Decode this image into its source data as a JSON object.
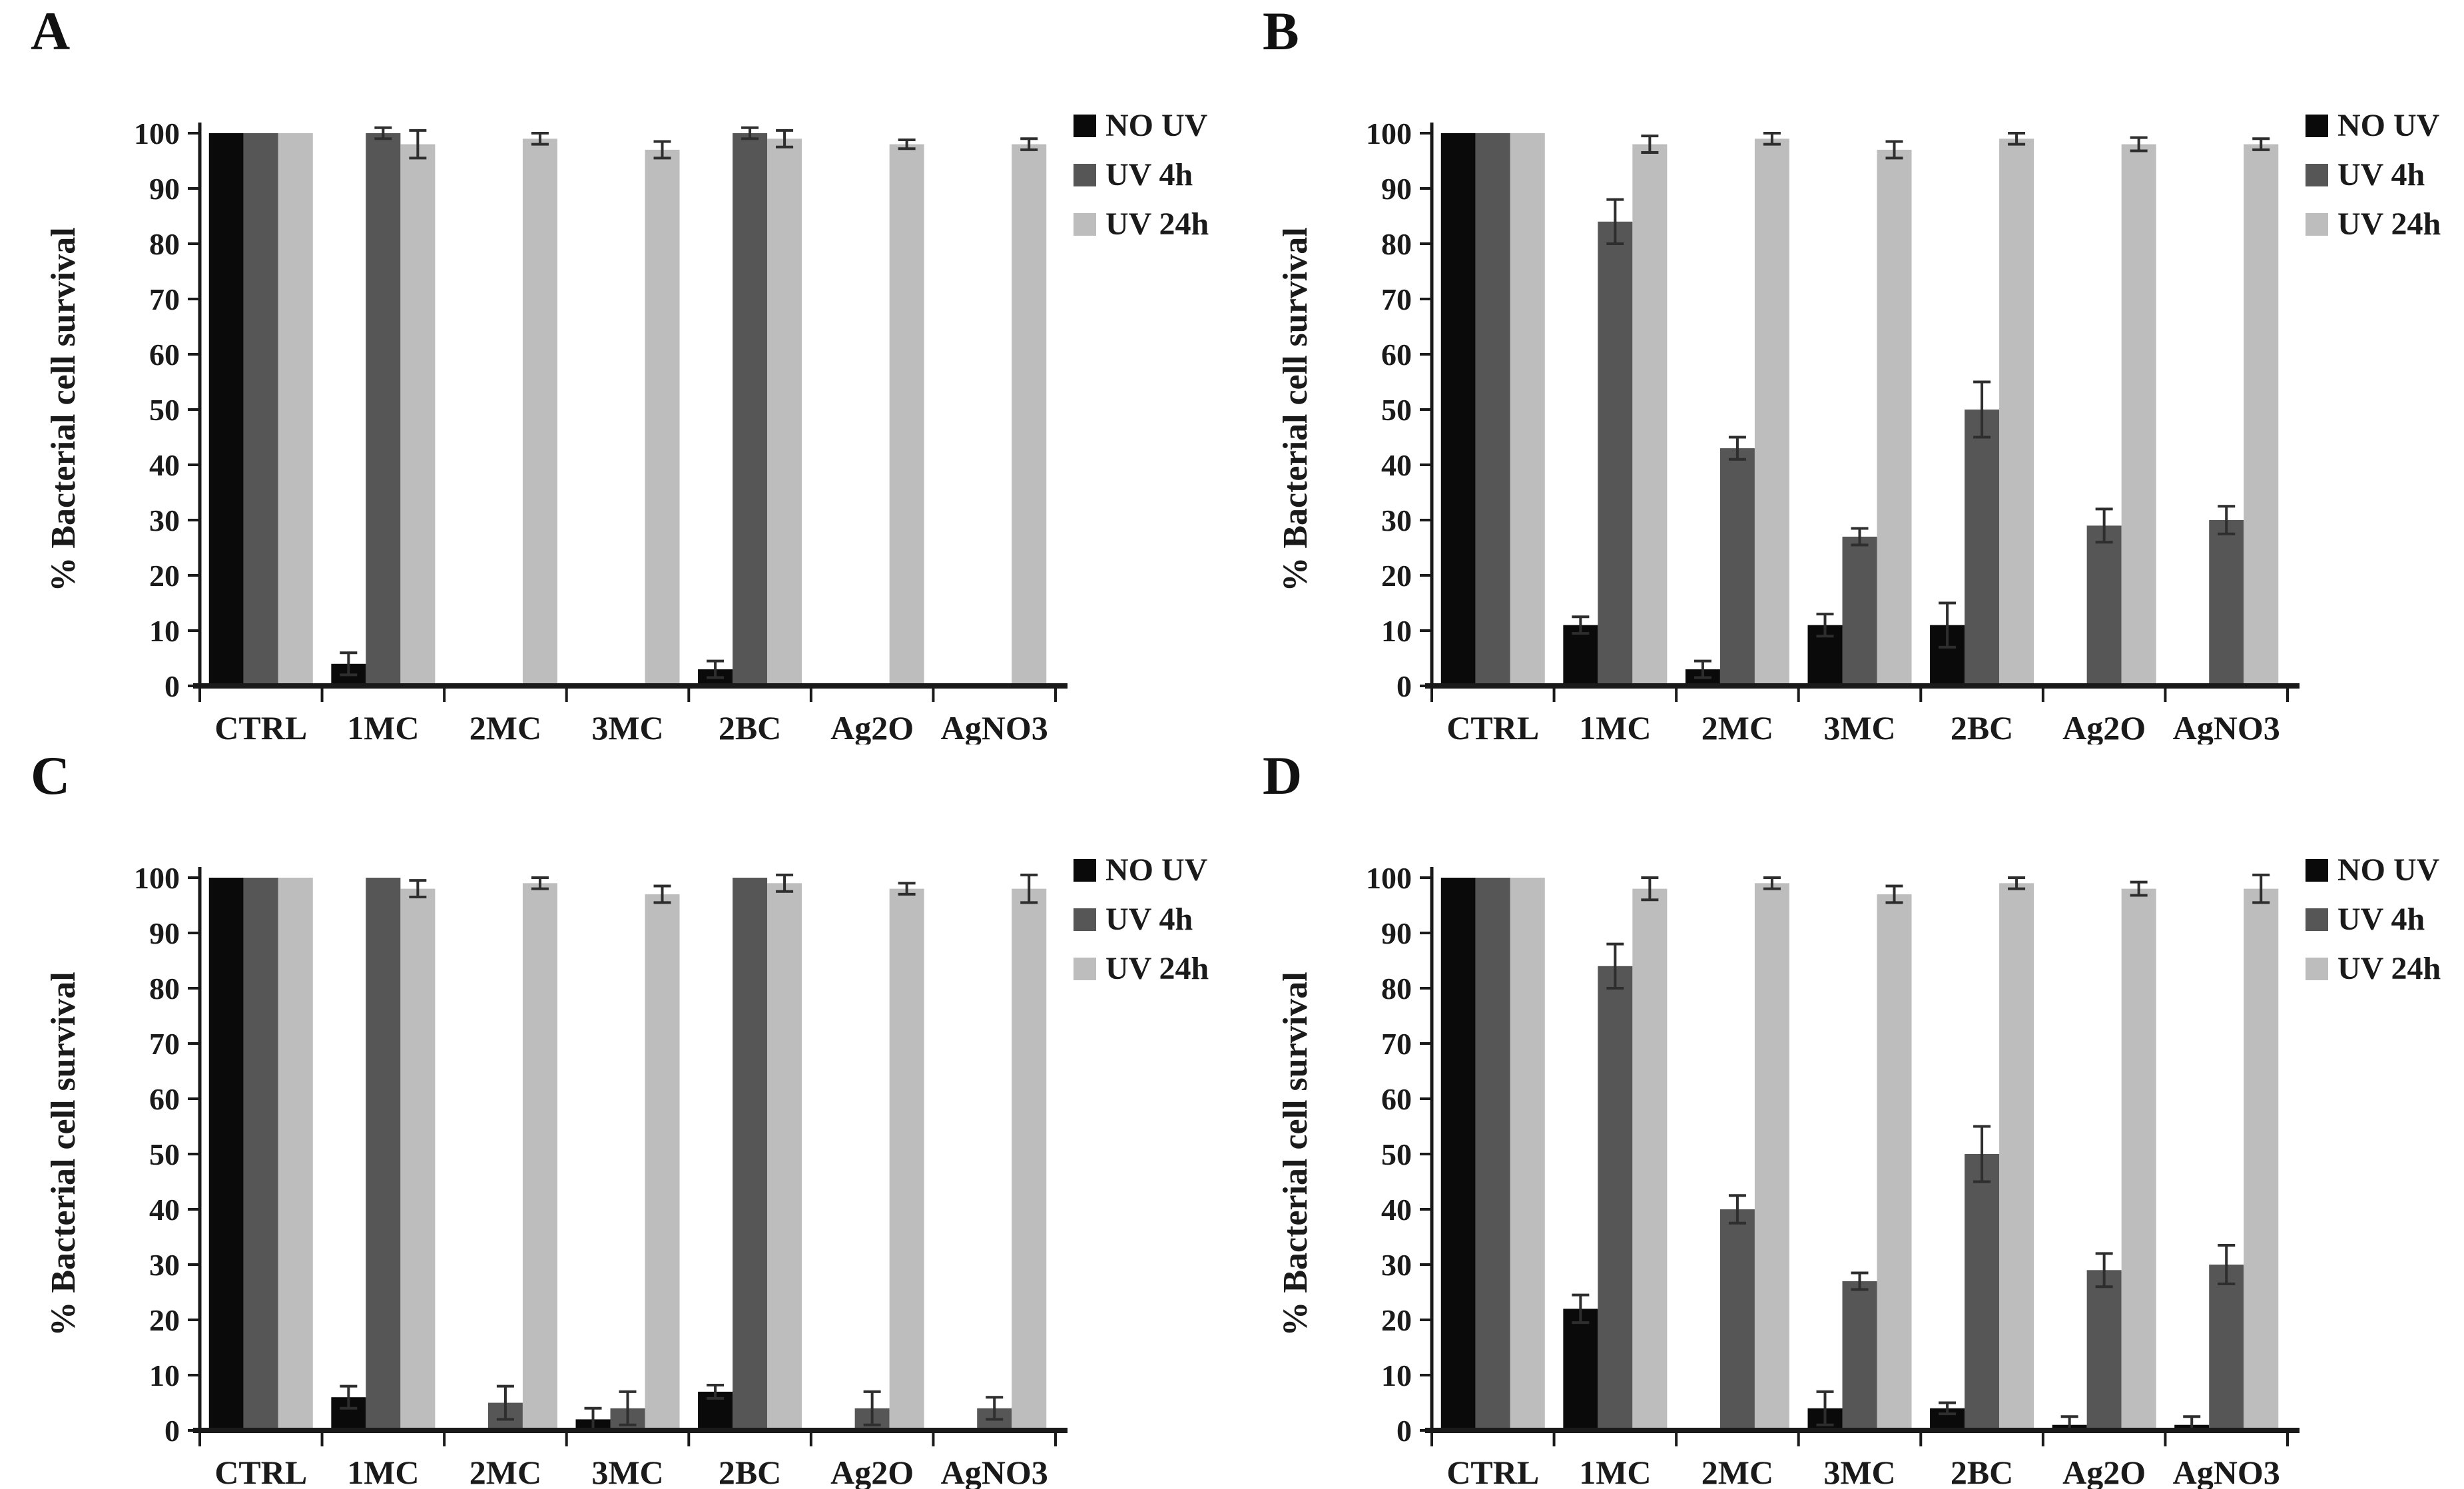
{
  "figure": {
    "background": "#ffffff",
    "ylabel": "% Bacterial cell survival",
    "yticks": [
      0,
      10,
      20,
      30,
      40,
      50,
      60,
      70,
      80,
      90,
      100
    ],
    "legend": [
      "NO UV",
      "UV 4h",
      "UV 24h"
    ],
    "series_colors": [
      "#0a0a0a",
      "#565656",
      "#bdbdbd"
    ],
    "axis_color": "#1a1a1a",
    "error_color": "#2e2e2e",
    "text_color": "#1a1a1a"
  },
  "chart_data": [
    {
      "panel": "A",
      "type": "bar",
      "title": "",
      "xlabel": "",
      "ylabel": "% Bacterial cell survival",
      "ylim": [
        0,
        100
      ],
      "grid": false,
      "legend_position": "right-top",
      "categories": [
        "CTRL",
        "1MC",
        "2MC",
        "3MC",
        "2BC",
        "Ag2O",
        "AgNO3"
      ],
      "series": [
        {
          "name": "NO UV",
          "values": [
            100,
            4,
            0,
            0,
            3,
            0,
            0
          ],
          "errors": [
            0,
            2,
            0,
            0,
            1.5,
            0,
            0
          ]
        },
        {
          "name": "UV 4h",
          "values": [
            100,
            100,
            0,
            0,
            100,
            0,
            0
          ],
          "errors": [
            0,
            1,
            0,
            0,
            1,
            0,
            0
          ]
        },
        {
          "name": "UV 24h",
          "values": [
            100,
            98,
            99,
            97,
            99,
            98,
            98
          ],
          "errors": [
            0,
            2.5,
            1,
            1.5,
            1.5,
            0.8,
            1
          ]
        }
      ]
    },
    {
      "panel": "B",
      "type": "bar",
      "title": "",
      "xlabel": "",
      "ylabel": "% Bacterial cell survival",
      "ylim": [
        0,
        100
      ],
      "grid": false,
      "legend_position": "right-top",
      "categories": [
        "CTRL",
        "1MC",
        "2MC",
        "3MC",
        "2BC",
        "Ag2O",
        "AgNO3"
      ],
      "series": [
        {
          "name": "NO UV",
          "values": [
            100,
            11,
            3,
            11,
            11,
            0,
            0
          ],
          "errors": [
            0,
            1.5,
            1.5,
            2,
            4,
            0,
            0
          ]
        },
        {
          "name": "UV 4h",
          "values": [
            100,
            84,
            43,
            27,
            50,
            29,
            30
          ],
          "errors": [
            0,
            4,
            2,
            1.5,
            5,
            3,
            2.5
          ]
        },
        {
          "name": "UV 24h",
          "values": [
            100,
            98,
            99,
            97,
            99,
            98,
            98
          ],
          "errors": [
            0,
            1.5,
            1,
            1.5,
            1,
            1.2,
            1
          ]
        }
      ]
    },
    {
      "panel": "C",
      "type": "bar",
      "title": "",
      "xlabel": "",
      "ylabel": "% Bacterial cell survival",
      "ylim": [
        0,
        100
      ],
      "grid": false,
      "legend_position": "right-top",
      "categories": [
        "CTRL",
        "1MC",
        "2MC",
        "3MC",
        "2BC",
        "Ag2O",
        "AgNO3"
      ],
      "series": [
        {
          "name": "NO UV",
          "values": [
            100,
            6,
            0,
            2,
            7,
            0,
            0
          ],
          "errors": [
            0,
            2,
            0,
            2,
            1.2,
            0,
            0
          ]
        },
        {
          "name": "UV 4h",
          "values": [
            100,
            100,
            5,
            4,
            100,
            4,
            4
          ],
          "errors": [
            0,
            0,
            3,
            3,
            0,
            3,
            2
          ]
        },
        {
          "name": "UV 24h",
          "values": [
            100,
            98,
            99,
            97,
            99,
            98,
            98
          ],
          "errors": [
            0,
            1.5,
            1,
            1.5,
            1.5,
            1,
            2.5
          ]
        }
      ]
    },
    {
      "panel": "D",
      "type": "bar",
      "title": "",
      "xlabel": "",
      "ylabel": "% Bacterial cell survival",
      "ylim": [
        0,
        100
      ],
      "grid": false,
      "legend_position": "right-top",
      "categories": [
        "CTRL",
        "1MC",
        "2MC",
        "3MC",
        "2BC",
        "Ag2O",
        "AgNO3"
      ],
      "series": [
        {
          "name": "NO UV",
          "values": [
            100,
            22,
            0,
            4,
            4,
            1,
            1
          ],
          "errors": [
            0,
            2.5,
            0,
            3,
            1,
            1.5,
            1.5
          ]
        },
        {
          "name": "UV 4h",
          "values": [
            100,
            84,
            40,
            27,
            50,
            29,
            30
          ],
          "errors": [
            0,
            4,
            2.5,
            1.5,
            5,
            3,
            3.5
          ]
        },
        {
          "name": "UV 24h",
          "values": [
            100,
            98,
            99,
            97,
            99,
            98,
            98
          ],
          "errors": [
            0,
            2,
            1,
            1.5,
            1,
            1.2,
            2.5
          ]
        }
      ]
    }
  ]
}
